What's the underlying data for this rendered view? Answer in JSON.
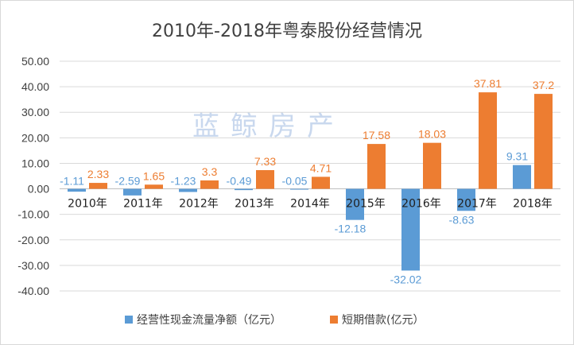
{
  "chart_data": {
    "type": "bar",
    "title": "2010年-2018年粤泰股份经营情况",
    "watermark": "蓝鲸房产",
    "categories": [
      "2010年",
      "2011年",
      "2012年",
      "2013年",
      "2014年",
      "2015年",
      "2016年",
      "2017年",
      "2018年"
    ],
    "series": [
      {
        "name": "经营性现金流量净额（亿元）",
        "color": "#5b9bd5",
        "values": [
          -1.11,
          -2.59,
          -1.23,
          -0.49,
          -0.05,
          -12.18,
          -32.02,
          -8.63,
          9.31
        ],
        "labels": [
          "-1.11",
          "-2.59",
          "-1.23",
          "-0.49",
          "-0.05",
          "-12.18",
          "-32.02",
          "-8.63",
          "9.31"
        ]
      },
      {
        "name": "短期借款(亿元）",
        "color": "#ed7d31",
        "values": [
          2.33,
          1.65,
          3.3,
          7.33,
          4.71,
          17.58,
          18.03,
          37.81,
          37.2
        ],
        "labels": [
          "2.33",
          "1.65",
          "3.3",
          "7.33",
          "4.71",
          "17.58",
          "18.03",
          "37.81",
          "37.2"
        ]
      }
    ],
    "yticks": [
      "50.00",
      "40.00",
      "30.00",
      "20.00",
      "10.00",
      "0.00",
      "-10.00",
      "-20.00",
      "-30.00",
      "-40.00"
    ],
    "ylim": [
      -40,
      50
    ],
    "grid": true,
    "legend": "bottom"
  }
}
